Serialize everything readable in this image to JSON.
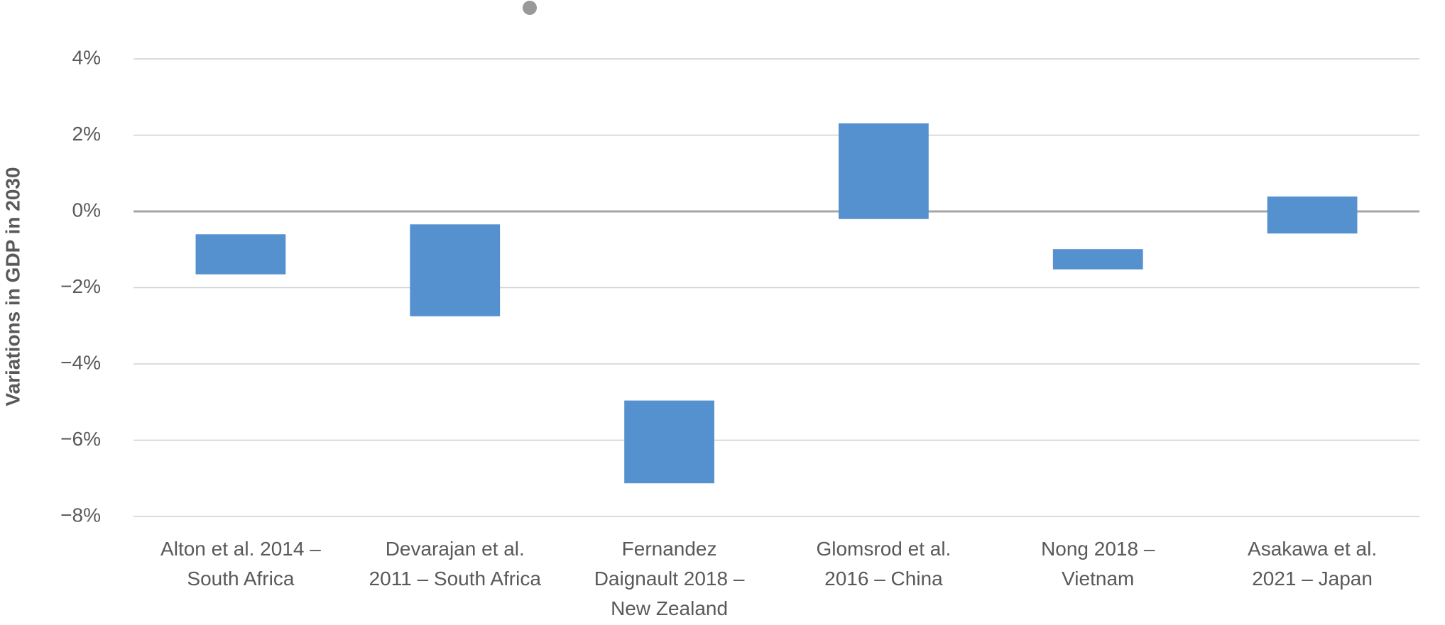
{
  "chart_data": {
    "type": "floating-bar",
    "y_label": "Variations in GDP in 2030",
    "categories": [
      [
        "Alton et al. 2014 –",
        "South Africa"
      ],
      [
        "Devarajan et al.",
        "2011 – South Africa"
      ],
      [
        "Fernandez",
        "Daignault 2018 –",
        "New Zealand"
      ],
      [
        "Glomsrod et al.",
        "2016 – China"
      ],
      [
        "Nong 2018 –",
        "Vietnam"
      ],
      [
        "Asakawa et al.",
        "2021 – Japan"
      ]
    ],
    "low": [
      -1.65,
      -2.75,
      -7.13,
      -0.2,
      -1.52,
      -0.58
    ],
    "high": [
      -0.6,
      -0.34,
      -4.96,
      2.31,
      -0.99,
      0.39
    ],
    "color": "#5590cf",
    "ylim": [
      -8,
      4
    ],
    "yticks": [
      {
        "value": -8,
        "label": "−8%"
      },
      {
        "value": -6,
        "label": "−6%"
      },
      {
        "value": -4,
        "label": "−4%"
      },
      {
        "value": -2,
        "label": "−2%"
      },
      {
        "value": 0,
        "label": "0%"
      },
      {
        "value": 2,
        "label": "2%"
      },
      {
        "value": 4,
        "label": "4%"
      }
    ],
    "grid": true
  }
}
